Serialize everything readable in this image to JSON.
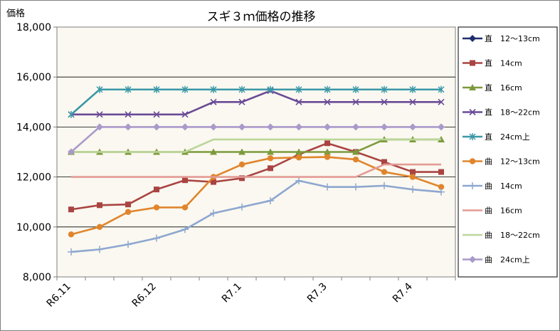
{
  "chart_data": {
    "type": "line",
    "title": "スギ３ｍ価格の推移",
    "ylabel": "価格",
    "xlabel": "",
    "ylim": [
      8000,
      18000
    ],
    "yticks": [
      "8,000",
      "10,000",
      "12,000",
      "14,000",
      "16,000",
      "18,000"
    ],
    "ytick_values": [
      8000,
      10000,
      12000,
      14000,
      16000,
      18000
    ],
    "x_tick_labels": [
      "R6.11",
      "R6.12",
      "R7.1",
      "R7.3",
      "R7.4"
    ],
    "x_tick_positions": [
      0,
      3,
      6,
      9,
      12
    ],
    "grid": "horizontal",
    "legend_position": "right",
    "plot_background": "#faf8f0",
    "series": [
      {
        "name": "直　12～13cm",
        "color": "#1f2d6e",
        "marker": "diamond",
        "values": [
          null,
          null,
          null,
          null,
          null,
          null,
          null,
          null,
          null,
          null,
          null,
          null,
          null,
          null
        ]
      },
      {
        "name": "直　14cm",
        "color": "#a94442",
        "marker": "square",
        "values": [
          10700,
          10870,
          10900,
          11500,
          11870,
          11800,
          11950,
          12350,
          12900,
          13350,
          13000,
          12600,
          12200,
          12200
        ]
      },
      {
        "name": "直　16cm",
        "color": "#7c9a3c",
        "marker": "triangle",
        "values": [
          13000,
          13000,
          13000,
          13000,
          13000,
          13000,
          13000,
          13000,
          13000,
          13000,
          13000,
          13500,
          13500,
          13500
        ]
      },
      {
        "name": "直　18～22cm",
        "color": "#6a4a96",
        "marker": "x",
        "values": [
          14500,
          14500,
          14500,
          14500,
          14500,
          15000,
          15000,
          15450,
          15000,
          15000,
          15000,
          15000,
          15000,
          15000
        ]
      },
      {
        "name": "直　24cm上",
        "color": "#3a98a8",
        "marker": "star",
        "values": [
          14500,
          15500,
          15500,
          15500,
          15500,
          15500,
          15500,
          15500,
          15500,
          15500,
          15500,
          15500,
          15500,
          15500
        ]
      },
      {
        "name": "曲　12～13cm",
        "color": "#e0852c",
        "marker": "circle",
        "values": [
          9700,
          10000,
          10600,
          10780,
          10780,
          12000,
          12500,
          12750,
          12780,
          12800,
          12700,
          12200,
          12000,
          11600
        ]
      },
      {
        "name": "曲　14cm",
        "color": "#8ea7d0",
        "marker": "plus",
        "values": [
          9000,
          9100,
          9300,
          9550,
          9900,
          10550,
          10800,
          11050,
          11850,
          11600,
          11600,
          11650,
          11500,
          11400
        ]
      },
      {
        "name": "曲　16cm",
        "color": "#e39b94",
        "marker": "none",
        "values": [
          12000,
          12000,
          12000,
          12000,
          12000,
          12000,
          12000,
          12000,
          12000,
          12000,
          12000,
          12500,
          12500,
          12500
        ]
      },
      {
        "name": "曲　18～22cm",
        "color": "#bcd69a",
        "marker": "none",
        "values": [
          13000,
          13000,
          13000,
          13000,
          13000,
          13500,
          13500,
          13500,
          13500,
          13500,
          13500,
          13500,
          13500,
          13500
        ]
      },
      {
        "name": "曲　24cm上",
        "color": "#a99acb",
        "marker": "diamond",
        "values": [
          13000,
          14000,
          14000,
          14000,
          14000,
          14000,
          14000,
          14000,
          14000,
          14000,
          14000,
          14000,
          14000,
          14000
        ]
      }
    ]
  }
}
